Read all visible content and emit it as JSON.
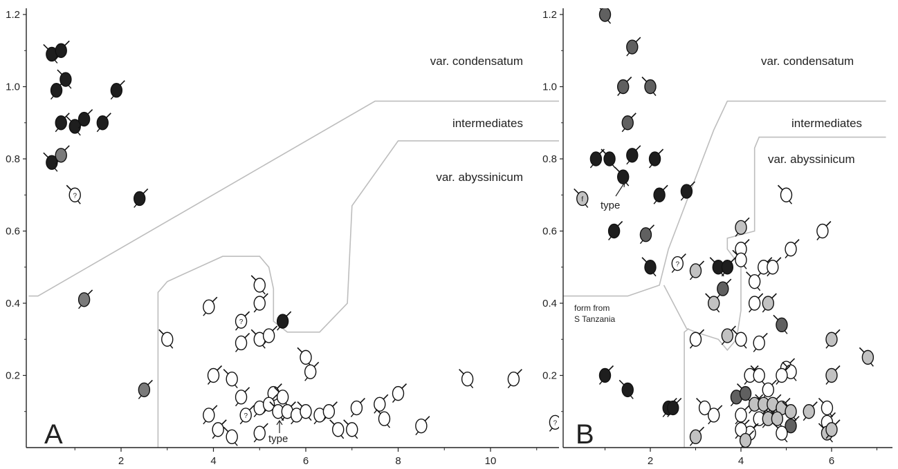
{
  "chart_data": [
    {
      "type": "scatter",
      "panel_label": "A",
      "xlim": [
        0,
        11.5
      ],
      "ylim": [
        0,
        1.22
      ],
      "x_ticks": [
        2,
        4,
        6,
        8,
        10
      ],
      "y_ticks": [
        0.2,
        0.4,
        0.6,
        0.8,
        1.0,
        1.2
      ],
      "y_tick_labels": [
        "0.2",
        "0.4",
        "0.6",
        "0.8",
        "1.0",
        "1.2"
      ],
      "region_labels": [
        "var. condensatum",
        "intermediates",
        "var. abyssinicum"
      ],
      "type_label": "type",
      "grid": false,
      "boundaries": [
        [
          [
            0,
            0.42
          ],
          [
            0.2,
            0.42
          ],
          [
            7.5,
            0.96
          ],
          [
            11.5,
            0.96
          ]
        ],
        [
          [
            2.8,
            0.0
          ],
          [
            2.8,
            0.43
          ],
          [
            3.0,
            0.46
          ],
          [
            4.2,
            0.53
          ],
          [
            5.0,
            0.53
          ],
          [
            5.2,
            0.5
          ],
          [
            5.3,
            0.44
          ],
          [
            5.3,
            0.35
          ],
          [
            5.6,
            0.32
          ],
          [
            6.3,
            0.32
          ],
          [
            6.9,
            0.4
          ],
          [
            7.0,
            0.67
          ],
          [
            8.0,
            0.85
          ],
          [
            11.5,
            0.85
          ]
        ]
      ],
      "points": [
        {
          "x": 0.5,
          "y": 1.09,
          "fill": "black"
        },
        {
          "x": 0.7,
          "y": 1.1,
          "fill": "black"
        },
        {
          "x": 0.6,
          "y": 0.99,
          "fill": "black"
        },
        {
          "x": 0.8,
          "y": 1.02,
          "fill": "black"
        },
        {
          "x": 1.9,
          "y": 0.99,
          "fill": "black"
        },
        {
          "x": 0.7,
          "y": 0.9,
          "fill": "black"
        },
        {
          "x": 1.0,
          "y": 0.89,
          "fill": "black"
        },
        {
          "x": 1.2,
          "y": 0.91,
          "fill": "black"
        },
        {
          "x": 1.6,
          "y": 0.9,
          "fill": "black"
        },
        {
          "x": 0.5,
          "y": 0.79,
          "fill": "black"
        },
        {
          "x": 0.7,
          "y": 0.81,
          "fill": "grey"
        },
        {
          "x": 2.4,
          "y": 0.69,
          "fill": "black"
        },
        {
          "x": 1.0,
          "y": 0.7,
          "fill": "white",
          "mark": "?"
        },
        {
          "x": 1.2,
          "y": 0.41,
          "fill": "grey"
        },
        {
          "x": 2.5,
          "y": 0.16,
          "fill": "grey"
        },
        {
          "x": 3.0,
          "y": 0.3,
          "fill": "white"
        },
        {
          "x": 3.9,
          "y": 0.39,
          "fill": "white"
        },
        {
          "x": 4.6,
          "y": 0.35,
          "fill": "white",
          "mark": "?"
        },
        {
          "x": 5.0,
          "y": 0.45,
          "fill": "white"
        },
        {
          "x": 5.0,
          "y": 0.4,
          "fill": "white"
        },
        {
          "x": 5.5,
          "y": 0.35,
          "fill": "black"
        },
        {
          "x": 5.0,
          "y": 0.3,
          "fill": "white"
        },
        {
          "x": 5.2,
          "y": 0.31,
          "fill": "white"
        },
        {
          "x": 4.6,
          "y": 0.29,
          "fill": "white"
        },
        {
          "x": 6.0,
          "y": 0.25,
          "fill": "white"
        },
        {
          "x": 6.1,
          "y": 0.21,
          "fill": "white"
        },
        {
          "x": 4.0,
          "y": 0.2,
          "fill": "white"
        },
        {
          "x": 4.4,
          "y": 0.19,
          "fill": "white"
        },
        {
          "x": 4.6,
          "y": 0.14,
          "fill": "white"
        },
        {
          "x": 5.3,
          "y": 0.15,
          "fill": "white"
        },
        {
          "x": 5.5,
          "y": 0.14,
          "fill": "white"
        },
        {
          "x": 5.0,
          "y": 0.11,
          "fill": "white"
        },
        {
          "x": 5.2,
          "y": 0.12,
          "fill": "white"
        },
        {
          "x": 5.4,
          "y": 0.1,
          "fill": "white"
        },
        {
          "x": 5.6,
          "y": 0.1,
          "fill": "white"
        },
        {
          "x": 5.8,
          "y": 0.09,
          "fill": "white"
        },
        {
          "x": 6.0,
          "y": 0.1,
          "fill": "white"
        },
        {
          "x": 6.3,
          "y": 0.09,
          "fill": "white"
        },
        {
          "x": 6.5,
          "y": 0.1,
          "fill": "white"
        },
        {
          "x": 6.7,
          "y": 0.05,
          "fill": "white"
        },
        {
          "x": 7.1,
          "y": 0.11,
          "fill": "white"
        },
        {
          "x": 7.6,
          "y": 0.12,
          "fill": "white"
        },
        {
          "x": 7.7,
          "y": 0.08,
          "fill": "white"
        },
        {
          "x": 8.0,
          "y": 0.15,
          "fill": "white"
        },
        {
          "x": 8.5,
          "y": 0.06,
          "fill": "white"
        },
        {
          "x": 7.0,
          "y": 0.05,
          "fill": "white"
        },
        {
          "x": 3.9,
          "y": 0.09,
          "fill": "white"
        },
        {
          "x": 4.1,
          "y": 0.05,
          "fill": "white"
        },
        {
          "x": 4.4,
          "y": 0.03,
          "fill": "white"
        },
        {
          "x": 4.7,
          "y": 0.09,
          "fill": "white",
          "mark": "?"
        },
        {
          "x": 5.0,
          "y": 0.04,
          "fill": "white"
        },
        {
          "x": 9.5,
          "y": 0.19,
          "fill": "white"
        },
        {
          "x": 10.5,
          "y": 0.19,
          "fill": "white"
        },
        {
          "x": 11.4,
          "y": 0.07,
          "fill": "white",
          "mark": "?"
        }
      ],
      "type_point": {
        "x": 5.5,
        "y": 0.1
      }
    },
    {
      "type": "scatter",
      "panel_label": "B",
      "xlim": [
        0,
        7.2
      ],
      "ylim": [
        0,
        1.22
      ],
      "x_ticks": [
        2,
        4,
        6
      ],
      "y_ticks": [
        0.2,
        0.4,
        0.6,
        0.8,
        1.0,
        1.2
      ],
      "y_tick_labels": [
        "0.2",
        "0.4",
        "0.6",
        "0.8",
        "1.0",
        "1.2"
      ],
      "region_labels": [
        "var. condensatum",
        "intermediates",
        "var. abyssinicum"
      ],
      "extra_label_lines": [
        "form from",
        "S Tanzania"
      ],
      "type_label": "type",
      "grid": false,
      "boundaries": [
        [
          [
            0,
            0.42
          ],
          [
            1.5,
            0.42
          ],
          [
            2.2,
            0.45
          ],
          [
            2.4,
            0.55
          ],
          [
            3.4,
            0.88
          ],
          [
            3.7,
            0.96
          ],
          [
            7.2,
            0.96
          ]
        ],
        [
          [
            2.3,
            0.45
          ],
          [
            2.8,
            0.33
          ],
          [
            3.0,
            0.32
          ],
          [
            3.5,
            0.3
          ],
          [
            3.7,
            0.27
          ],
          [
            3.9,
            0.3
          ],
          [
            4.0,
            0.38
          ],
          [
            4.0,
            0.5
          ],
          [
            3.7,
            0.55
          ],
          [
            3.7,
            0.58
          ],
          [
            4.3,
            0.6
          ],
          [
            4.3,
            0.83
          ],
          [
            4.4,
            0.86
          ],
          [
            7.2,
            0.86
          ]
        ],
        [
          [
            2.75,
            0.0
          ],
          [
            2.75,
            0.32
          ],
          [
            2.85,
            0.33
          ]
        ]
      ],
      "points": [
        {
          "x": 1.0,
          "y": 1.2,
          "fill": "dark"
        },
        {
          "x": 1.6,
          "y": 1.11,
          "fill": "dark"
        },
        {
          "x": 1.4,
          "y": 1.0,
          "fill": "dark"
        },
        {
          "x": 2.0,
          "y": 1.0,
          "fill": "dark"
        },
        {
          "x": 1.5,
          "y": 0.9,
          "fill": "dark"
        },
        {
          "x": 0.8,
          "y": 0.8,
          "fill": "black"
        },
        {
          "x": 1.1,
          "y": 0.8,
          "fill": "black"
        },
        {
          "x": 1.6,
          "y": 0.81,
          "fill": "black"
        },
        {
          "x": 2.1,
          "y": 0.8,
          "fill": "black"
        },
        {
          "x": 1.4,
          "y": 0.75,
          "fill": "black"
        },
        {
          "x": 2.8,
          "y": 0.71,
          "fill": "black"
        },
        {
          "x": 2.2,
          "y": 0.7,
          "fill": "black"
        },
        {
          "x": 0.5,
          "y": 0.69,
          "fill": "lightgrey",
          "mark": "f"
        },
        {
          "x": 1.2,
          "y": 0.6,
          "fill": "black"
        },
        {
          "x": 1.9,
          "y": 0.59,
          "fill": "dark"
        },
        {
          "x": 2.0,
          "y": 0.5,
          "fill": "black"
        },
        {
          "x": 2.6,
          "y": 0.51,
          "fill": "white",
          "mark": "?"
        },
        {
          "x": 3.0,
          "y": 0.49,
          "fill": "lightgrey"
        },
        {
          "x": 3.5,
          "y": 0.5,
          "fill": "black"
        },
        {
          "x": 3.7,
          "y": 0.5,
          "fill": "black"
        },
        {
          "x": 3.6,
          "y": 0.44,
          "fill": "dark"
        },
        {
          "x": 3.4,
          "y": 0.4,
          "fill": "lightgrey"
        },
        {
          "x": 4.0,
          "y": 0.61,
          "fill": "lightgrey"
        },
        {
          "x": 4.0,
          "y": 0.55,
          "fill": "white"
        },
        {
          "x": 4.0,
          "y": 0.52,
          "fill": "white"
        },
        {
          "x": 4.5,
          "y": 0.5,
          "fill": "white"
        },
        {
          "x": 4.7,
          "y": 0.5,
          "fill": "white"
        },
        {
          "x": 4.3,
          "y": 0.46,
          "fill": "white"
        },
        {
          "x": 4.3,
          "y": 0.4,
          "fill": "white"
        },
        {
          "x": 4.6,
          "y": 0.4,
          "fill": "lightgrey"
        },
        {
          "x": 5.0,
          "y": 0.7,
          "fill": "white"
        },
        {
          "x": 5.1,
          "y": 0.55,
          "fill": "white"
        },
        {
          "x": 5.8,
          "y": 0.6,
          "fill": "white"
        },
        {
          "x": 4.9,
          "y": 0.34,
          "fill": "dark"
        },
        {
          "x": 3.0,
          "y": 0.3,
          "fill": "white"
        },
        {
          "x": 3.7,
          "y": 0.31,
          "fill": "lightgrey"
        },
        {
          "x": 4.0,
          "y": 0.3,
          "fill": "white"
        },
        {
          "x": 4.4,
          "y": 0.29,
          "fill": "white"
        },
        {
          "x": 6.0,
          "y": 0.3,
          "fill": "lightgrey"
        },
        {
          "x": 6.8,
          "y": 0.25,
          "fill": "lightgrey"
        },
        {
          "x": 6.0,
          "y": 0.2,
          "fill": "lightgrey"
        },
        {
          "x": 5.0,
          "y": 0.22,
          "fill": "white"
        },
        {
          "x": 5.1,
          "y": 0.21,
          "fill": "white"
        },
        {
          "x": 4.9,
          "y": 0.2,
          "fill": "white"
        },
        {
          "x": 4.2,
          "y": 0.2,
          "fill": "white"
        },
        {
          "x": 4.4,
          "y": 0.2,
          "fill": "white"
        },
        {
          "x": 4.6,
          "y": 0.16,
          "fill": "white"
        },
        {
          "x": 1.0,
          "y": 0.2,
          "fill": "black"
        },
        {
          "x": 1.5,
          "y": 0.16,
          "fill": "black"
        },
        {
          "x": 2.4,
          "y": 0.11,
          "fill": "black"
        },
        {
          "x": 2.5,
          "y": 0.11,
          "fill": "black"
        },
        {
          "x": 3.2,
          "y": 0.11,
          "fill": "white"
        },
        {
          "x": 3.4,
          "y": 0.09,
          "fill": "white"
        },
        {
          "x": 3.9,
          "y": 0.14,
          "fill": "dark"
        },
        {
          "x": 4.1,
          "y": 0.15,
          "fill": "dark"
        },
        {
          "x": 4.0,
          "y": 0.09,
          "fill": "white"
        },
        {
          "x": 4.3,
          "y": 0.12,
          "fill": "lightgrey"
        },
        {
          "x": 4.5,
          "y": 0.12,
          "fill": "lightgrey"
        },
        {
          "x": 4.7,
          "y": 0.12,
          "fill": "lightgrey"
        },
        {
          "x": 4.9,
          "y": 0.11,
          "fill": "lightgrey"
        },
        {
          "x": 5.1,
          "y": 0.1,
          "fill": "lightgrey"
        },
        {
          "x": 4.4,
          "y": 0.08,
          "fill": "white"
        },
        {
          "x": 4.6,
          "y": 0.08,
          "fill": "lightgrey"
        },
        {
          "x": 4.8,
          "y": 0.08,
          "fill": "lightgrey"
        },
        {
          "x": 5.1,
          "y": 0.06,
          "fill": "dark"
        },
        {
          "x": 5.5,
          "y": 0.1,
          "fill": "lightgrey"
        },
        {
          "x": 5.9,
          "y": 0.11,
          "fill": "white"
        },
        {
          "x": 5.9,
          "y": 0.07,
          "fill": "white"
        },
        {
          "x": 4.2,
          "y": 0.04,
          "fill": "white"
        },
        {
          "x": 4.9,
          "y": 0.04,
          "fill": "white"
        },
        {
          "x": 3.0,
          "y": 0.03,
          "fill": "lightgrey"
        },
        {
          "x": 4.0,
          "y": 0.05,
          "fill": "white"
        },
        {
          "x": 5.9,
          "y": 0.04,
          "fill": "lightgrey"
        },
        {
          "x": 6.0,
          "y": 0.05,
          "fill": "lightgrey"
        },
        {
          "x": 4.1,
          "y": 0.02,
          "fill": "lightgrey"
        }
      ],
      "type_point": {
        "x": 1.4,
        "y": 0.75
      }
    }
  ],
  "colors": {
    "black": "#1e1e1e",
    "dark": "#606060",
    "grey": "#7a7a7a",
    "lightgrey": "#c2c2c2",
    "white": "#ffffff",
    "boundary": "#bdbdbd",
    "axis": "#222222"
  }
}
